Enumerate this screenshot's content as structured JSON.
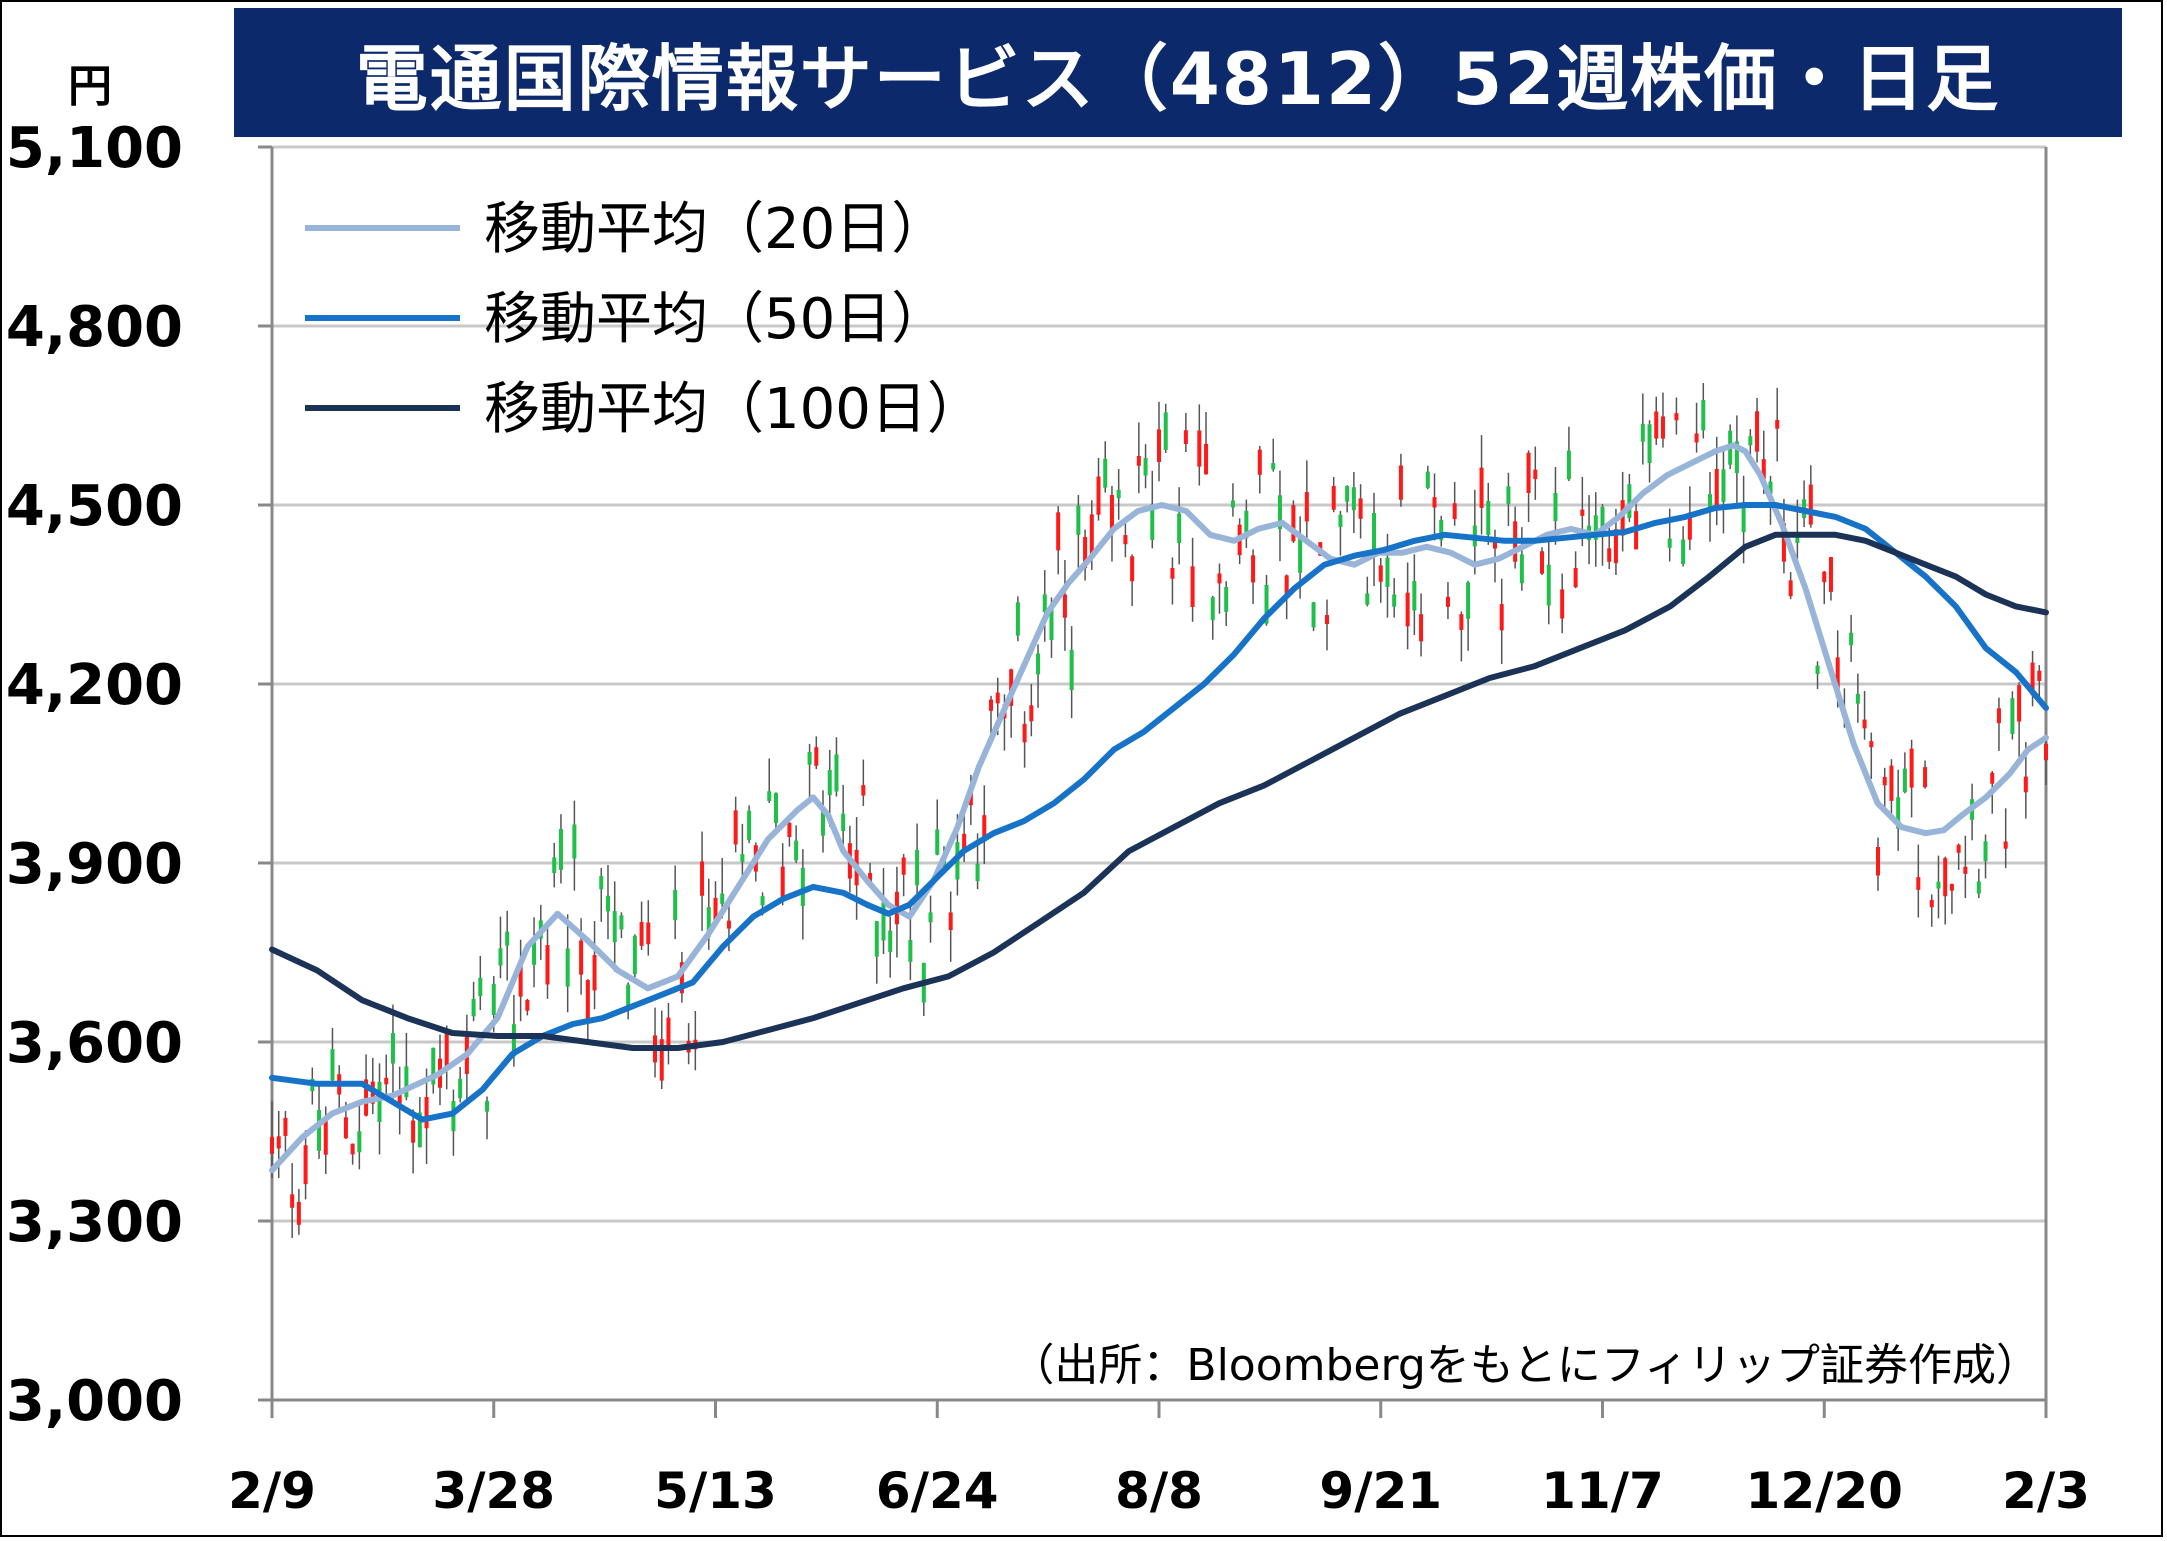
{
  "title": "電通国際情報サービス（4812）52週株価・日足",
  "unit": "円",
  "source": "（出所：Bloombergをもとにフィリップ証券作成）",
  "colors": {
    "title_bg": "#0c2a6b",
    "up": "#ff1a1a",
    "down": "#1fbf4a",
    "ma20": "#98b4d8",
    "ma50": "#1673c8",
    "ma100": "#1c3358",
    "grid": "#c8c8c8"
  },
  "chart_data": {
    "type": "candlestick",
    "title": "電通国際情報サービス（4812）52週株価・日足",
    "ylabel": "円",
    "ylim": [
      3000,
      5100
    ],
    "yticks": [
      "3,000",
      "3,300",
      "3,600",
      "3,900",
      "4,200",
      "4,500",
      "4,800",
      "5,100"
    ],
    "ytick_values": [
      3000,
      3300,
      3600,
      3900,
      4200,
      4500,
      4800,
      5100
    ],
    "xticks": [
      "2/9",
      "3/28",
      "5/13",
      "6/24",
      "8/8",
      "9/21",
      "11/7",
      "12/20",
      "2/3"
    ],
    "xtick_index": [
      0,
      33,
      66,
      99,
      132,
      165,
      198,
      231,
      264
    ],
    "num_days": 265,
    "grid": "horizontal",
    "legend_position": "top-left",
    "series": [
      {
        "name": "移動平均（20日）",
        "color": "#98b4d8",
        "points": [
          [
            0,
            3385
          ],
          [
            10,
            3440
          ],
          [
            20,
            3480
          ],
          [
            30,
            3500
          ],
          [
            40,
            3510
          ],
          [
            55,
            3545
          ],
          [
            65,
            3580
          ],
          [
            75,
            3640
          ],
          [
            85,
            3760
          ],
          [
            95,
            3815
          ],
          [
            105,
            3770
          ],
          [
            115,
            3720
          ],
          [
            125,
            3690
          ],
          [
            135,
            3710
          ],
          [
            145,
            3780
          ],
          [
            155,
            3860
          ],
          [
            165,
            3940
          ],
          [
            175,
            3990
          ],
          [
            180,
            4010
          ],
          [
            185,
            3980
          ],
          [
            190,
            3920
          ],
          [
            198,
            3870
          ],
          [
            205,
            3830
          ],
          [
            212,
            3810
          ],
          [
            220,
            3870
          ],
          [
            228,
            3960
          ],
          [
            235,
            4060
          ],
          [
            242,
            4140
          ],
          [
            250,
            4230
          ],
          [
            258,
            4320
          ],
          [
            265,
            4370
          ],
          [
            272,
            4410
          ],
          [
            280,
            4460
          ],
          [
            288,
            4490
          ],
          [
            296,
            4500
          ],
          [
            304,
            4490
          ],
          [
            312,
            4450
          ],
          [
            320,
            4440
          ],
          [
            328,
            4460
          ],
          [
            336,
            4470
          ],
          [
            344,
            4440
          ],
          [
            352,
            4410
          ],
          [
            360,
            4400
          ],
          [
            368,
            4420
          ],
          [
            376,
            4420
          ],
          [
            384,
            4430
          ],
          [
            392,
            4420
          ],
          [
            400,
            4400
          ],
          [
            408,
            4410
          ],
          [
            416,
            4430
          ],
          [
            424,
            4450
          ],
          [
            432,
            4460
          ],
          [
            440,
            4450
          ],
          [
            448,
            4480
          ],
          [
            456,
            4520
          ],
          [
            464,
            4550
          ],
          [
            472,
            4570
          ],
          [
            480,
            4590
          ],
          [
            486,
            4600
          ],
          [
            490,
            4590
          ],
          [
            495,
            4550
          ],
          [
            502,
            4470
          ],
          [
            510,
            4360
          ],
          [
            518,
            4230
          ],
          [
            526,
            4100
          ],
          [
            534,
            4000
          ],
          [
            542,
            3960
          ],
          [
            550,
            3950
          ],
          [
            556,
            3955
          ],
          [
            562,
            3980
          ],
          [
            570,
            4010
          ],
          [
            578,
            4050
          ],
          [
            584,
            4090
          ],
          [
            590,
            4110
          ]
        ]
      },
      {
        "name": "移動平均（50日）",
        "color": "#1673c8",
        "points": [
          [
            0,
            3540
          ],
          [
            15,
            3530
          ],
          [
            30,
            3530
          ],
          [
            40,
            3500
          ],
          [
            50,
            3470
          ],
          [
            60,
            3480
          ],
          [
            70,
            3520
          ],
          [
            80,
            3580
          ],
          [
            90,
            3610
          ],
          [
            100,
            3630
          ],
          [
            110,
            3640
          ],
          [
            120,
            3660
          ],
          [
            130,
            3680
          ],
          [
            140,
            3700
          ],
          [
            150,
            3760
          ],
          [
            160,
            3810
          ],
          [
            170,
            3840
          ],
          [
            180,
            3860
          ],
          [
            190,
            3850
          ],
          [
            198,
            3830
          ],
          [
            205,
            3815
          ],
          [
            212,
            3830
          ],
          [
            220,
            3870
          ],
          [
            230,
            3920
          ],
          [
            240,
            3950
          ],
          [
            250,
            3970
          ],
          [
            260,
            4000
          ],
          [
            270,
            4040
          ],
          [
            280,
            4090
          ],
          [
            290,
            4120
          ],
          [
            300,
            4160
          ],
          [
            310,
            4200
          ],
          [
            320,
            4250
          ],
          [
            330,
            4310
          ],
          [
            340,
            4360
          ],
          [
            350,
            4400
          ],
          [
            360,
            4415
          ],
          [
            370,
            4425
          ],
          [
            380,
            4440
          ],
          [
            390,
            4450
          ],
          [
            400,
            4445
          ],
          [
            410,
            4440
          ],
          [
            420,
            4440
          ],
          [
            430,
            4445
          ],
          [
            440,
            4450
          ],
          [
            450,
            4455
          ],
          [
            460,
            4470
          ],
          [
            470,
            4480
          ],
          [
            480,
            4495
          ],
          [
            490,
            4500
          ],
          [
            500,
            4500
          ],
          [
            510,
            4490
          ],
          [
            520,
            4480
          ],
          [
            530,
            4460
          ],
          [
            540,
            4420
          ],
          [
            550,
            4380
          ],
          [
            560,
            4330
          ],
          [
            570,
            4260
          ],
          [
            580,
            4220
          ],
          [
            590,
            4160
          ]
        ]
      },
      {
        "name": "移動平均（100日）",
        "color": "#1c3358",
        "points": [
          [
            0,
            3755
          ],
          [
            15,
            3720
          ],
          [
            30,
            3670
          ],
          [
            45,
            3640
          ],
          [
            60,
            3615
          ],
          [
            75,
            3610
          ],
          [
            90,
            3610
          ],
          [
            105,
            3600
          ],
          [
            120,
            3590
          ],
          [
            135,
            3590
          ],
          [
            150,
            3600
          ],
          [
            165,
            3620
          ],
          [
            180,
            3640
          ],
          [
            195,
            3665
          ],
          [
            210,
            3690
          ],
          [
            225,
            3710
          ],
          [
            240,
            3750
          ],
          [
            255,
            3800
          ],
          [
            270,
            3850
          ],
          [
            285,
            3920
          ],
          [
            300,
            3960
          ],
          [
            315,
            4000
          ],
          [
            330,
            4030
          ],
          [
            345,
            4070
          ],
          [
            360,
            4110
          ],
          [
            375,
            4150
          ],
          [
            390,
            4180
          ],
          [
            405,
            4210
          ],
          [
            420,
            4230
          ],
          [
            435,
            4260
          ],
          [
            450,
            4290
          ],
          [
            465,
            4330
          ],
          [
            478,
            4380
          ],
          [
            490,
            4430
          ],
          [
            500,
            4450
          ],
          [
            510,
            4450
          ],
          [
            520,
            4450
          ],
          [
            530,
            4440
          ],
          [
            540,
            4420
          ],
          [
            550,
            4400
          ],
          [
            560,
            4380
          ],
          [
            570,
            4350
          ],
          [
            580,
            4330
          ],
          [
            590,
            4320
          ]
        ]
      }
    ],
    "annotations": [
      "（出所：Bloombergをもとにフィリップ証券作成）"
    ]
  },
  "legend": [
    {
      "label": "移動平均（20日）",
      "color": "#98b4d8"
    },
    {
      "label": "移動平均（50日）",
      "color": "#1673c8"
    },
    {
      "label": "移動平均（100日）",
      "color": "#1c3358"
    }
  ]
}
